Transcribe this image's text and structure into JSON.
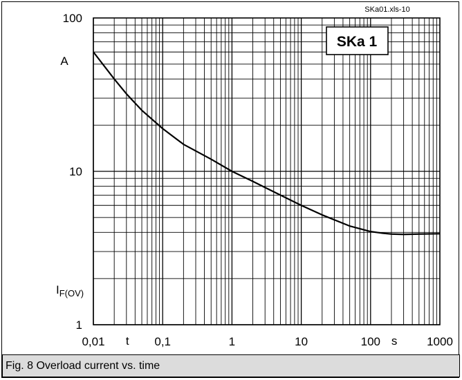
{
  "caption": "Fig. 8 Overload current vs. time",
  "chart_data": {
    "type": "line",
    "source_label": "SKa01.xls-10",
    "badge": "SKa 1",
    "xscale": "log",
    "yscale": "log",
    "xlim": [
      0.01,
      1000
    ],
    "ylim": [
      1,
      100
    ],
    "x_ticks": [
      "0,01",
      "0,1",
      "1",
      "10",
      "100",
      "1000"
    ],
    "y_ticks": [
      "1",
      "10",
      "100"
    ],
    "xlabel": "t",
    "xunit": "s",
    "ylabel": "I",
    "ylabel_sub": "F(OV)",
    "yunit": "A",
    "grid": true,
    "series": [
      {
        "x": [
          0.01,
          0.02,
          0.03,
          0.05,
          0.1,
          0.2,
          0.5,
          1,
          2,
          5,
          10,
          20,
          50,
          100,
          150,
          200,
          300,
          500,
          1000
        ],
        "y": [
          60,
          40,
          32,
          25,
          19,
          15,
          12,
          10,
          8.6,
          7,
          6,
          5.2,
          4.4,
          4.05,
          3.95,
          3.9,
          3.88,
          3.9,
          3.92
        ]
      }
    ]
  }
}
